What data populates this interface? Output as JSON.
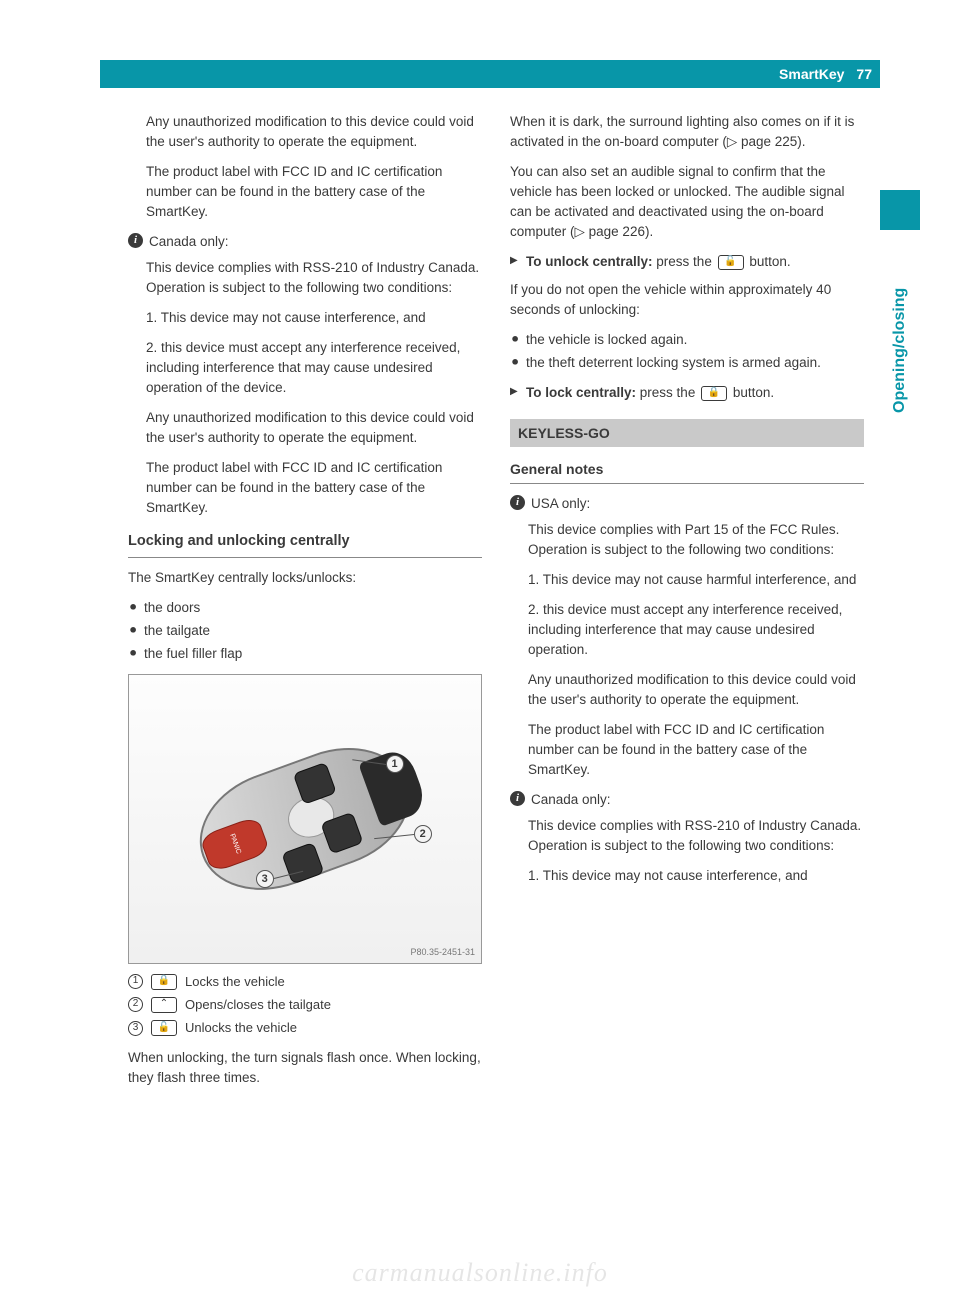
{
  "header": {
    "title": "SmartKey",
    "page_number": "77"
  },
  "side_tab": {
    "label": "Opening/closing"
  },
  "colors": {
    "accent": "#0896a8",
    "text": "#3a3a3a",
    "section_bg": "#c9c9c9",
    "rule": "#888888"
  },
  "left": {
    "p1": "Any unauthorized modification to this device could void the user's authority to operate the equipment.",
    "p2": "The product label with FCC ID and IC certification number can be found in the battery case of the SmartKey.",
    "info1_label": "Canada only:",
    "p3": "This device complies with RSS-210 of Industry Canada. Operation is subject to the following two conditions:",
    "p4": "1. This device may not cause interference, and",
    "p5": "2. this device must accept any interference received, including interference that may cause undesired operation of the device.",
    "p6": "Any unauthorized modification to this device could void the user's authority to operate the equipment.",
    "p7": "The product label with FCC ID and IC certification number can be found in the battery case of the SmartKey.",
    "h_locking": "Locking and unlocking centrally",
    "p8": "The SmartKey centrally locks/unlocks:",
    "bullets": [
      "the doors",
      "the tailgate",
      "the fuel filler flap"
    ],
    "figure_code": "P80.35-2451-31",
    "legend": [
      {
        "num": "1",
        "icon": "lock",
        "text": "Locks the vehicle"
      },
      {
        "num": "2",
        "icon": "tailgate",
        "text": "Opens/closes the tailgate"
      },
      {
        "num": "3",
        "icon": "unlock",
        "text": "Unlocks the vehicle"
      }
    ],
    "p9": "When unlocking, the turn signals flash once. When locking, they flash three times."
  },
  "right": {
    "p1": "When it is dark, the surround lighting also comes on if it is activated in the on-board computer (▷ page 225).",
    "p2": "You can also set an audible signal to confirm that the vehicle has been locked or unlocked. The audible signal can be activated and deactivated using the on-board computer (▷ page 226).",
    "a1_label": "To unlock centrally:",
    "a1_text": " press the ",
    "a1_tail": " button.",
    "p3": "If you do not open the vehicle within approximately 40 seconds of unlocking:",
    "bullets": [
      "the vehicle is locked again.",
      "the theft deterrent locking system is armed again."
    ],
    "a2_label": "To lock centrally:",
    "a2_text": " press the ",
    "a2_tail": " button.",
    "section": "KEYLESS-GO",
    "h_general": "General notes",
    "info1_label": "USA only:",
    "p4": "This device complies with Part 15 of the FCC Rules. Operation is subject to the following two conditions:",
    "p5": "1. This device may not cause harmful interference, and",
    "p6": "2. this device must accept any interference received, including interference that may cause undesired operation.",
    "p7": "Any unauthorized modification to this device could void the user's authority to operate the equipment.",
    "p8": "The product label with FCC ID and IC certification number can be found in the battery case of the SmartKey.",
    "info2_label": "Canada only:",
    "p9": "This device complies with RSS-210 of Industry Canada. Operation is subject to the following two conditions:",
    "p10": "1. This device may not cause interference, and"
  },
  "icons": {
    "lock_glyph": "🔒",
    "unlock_glyph": "🔓",
    "tailgate_glyph": "⌃"
  },
  "watermark": "carmanualsonline.info"
}
